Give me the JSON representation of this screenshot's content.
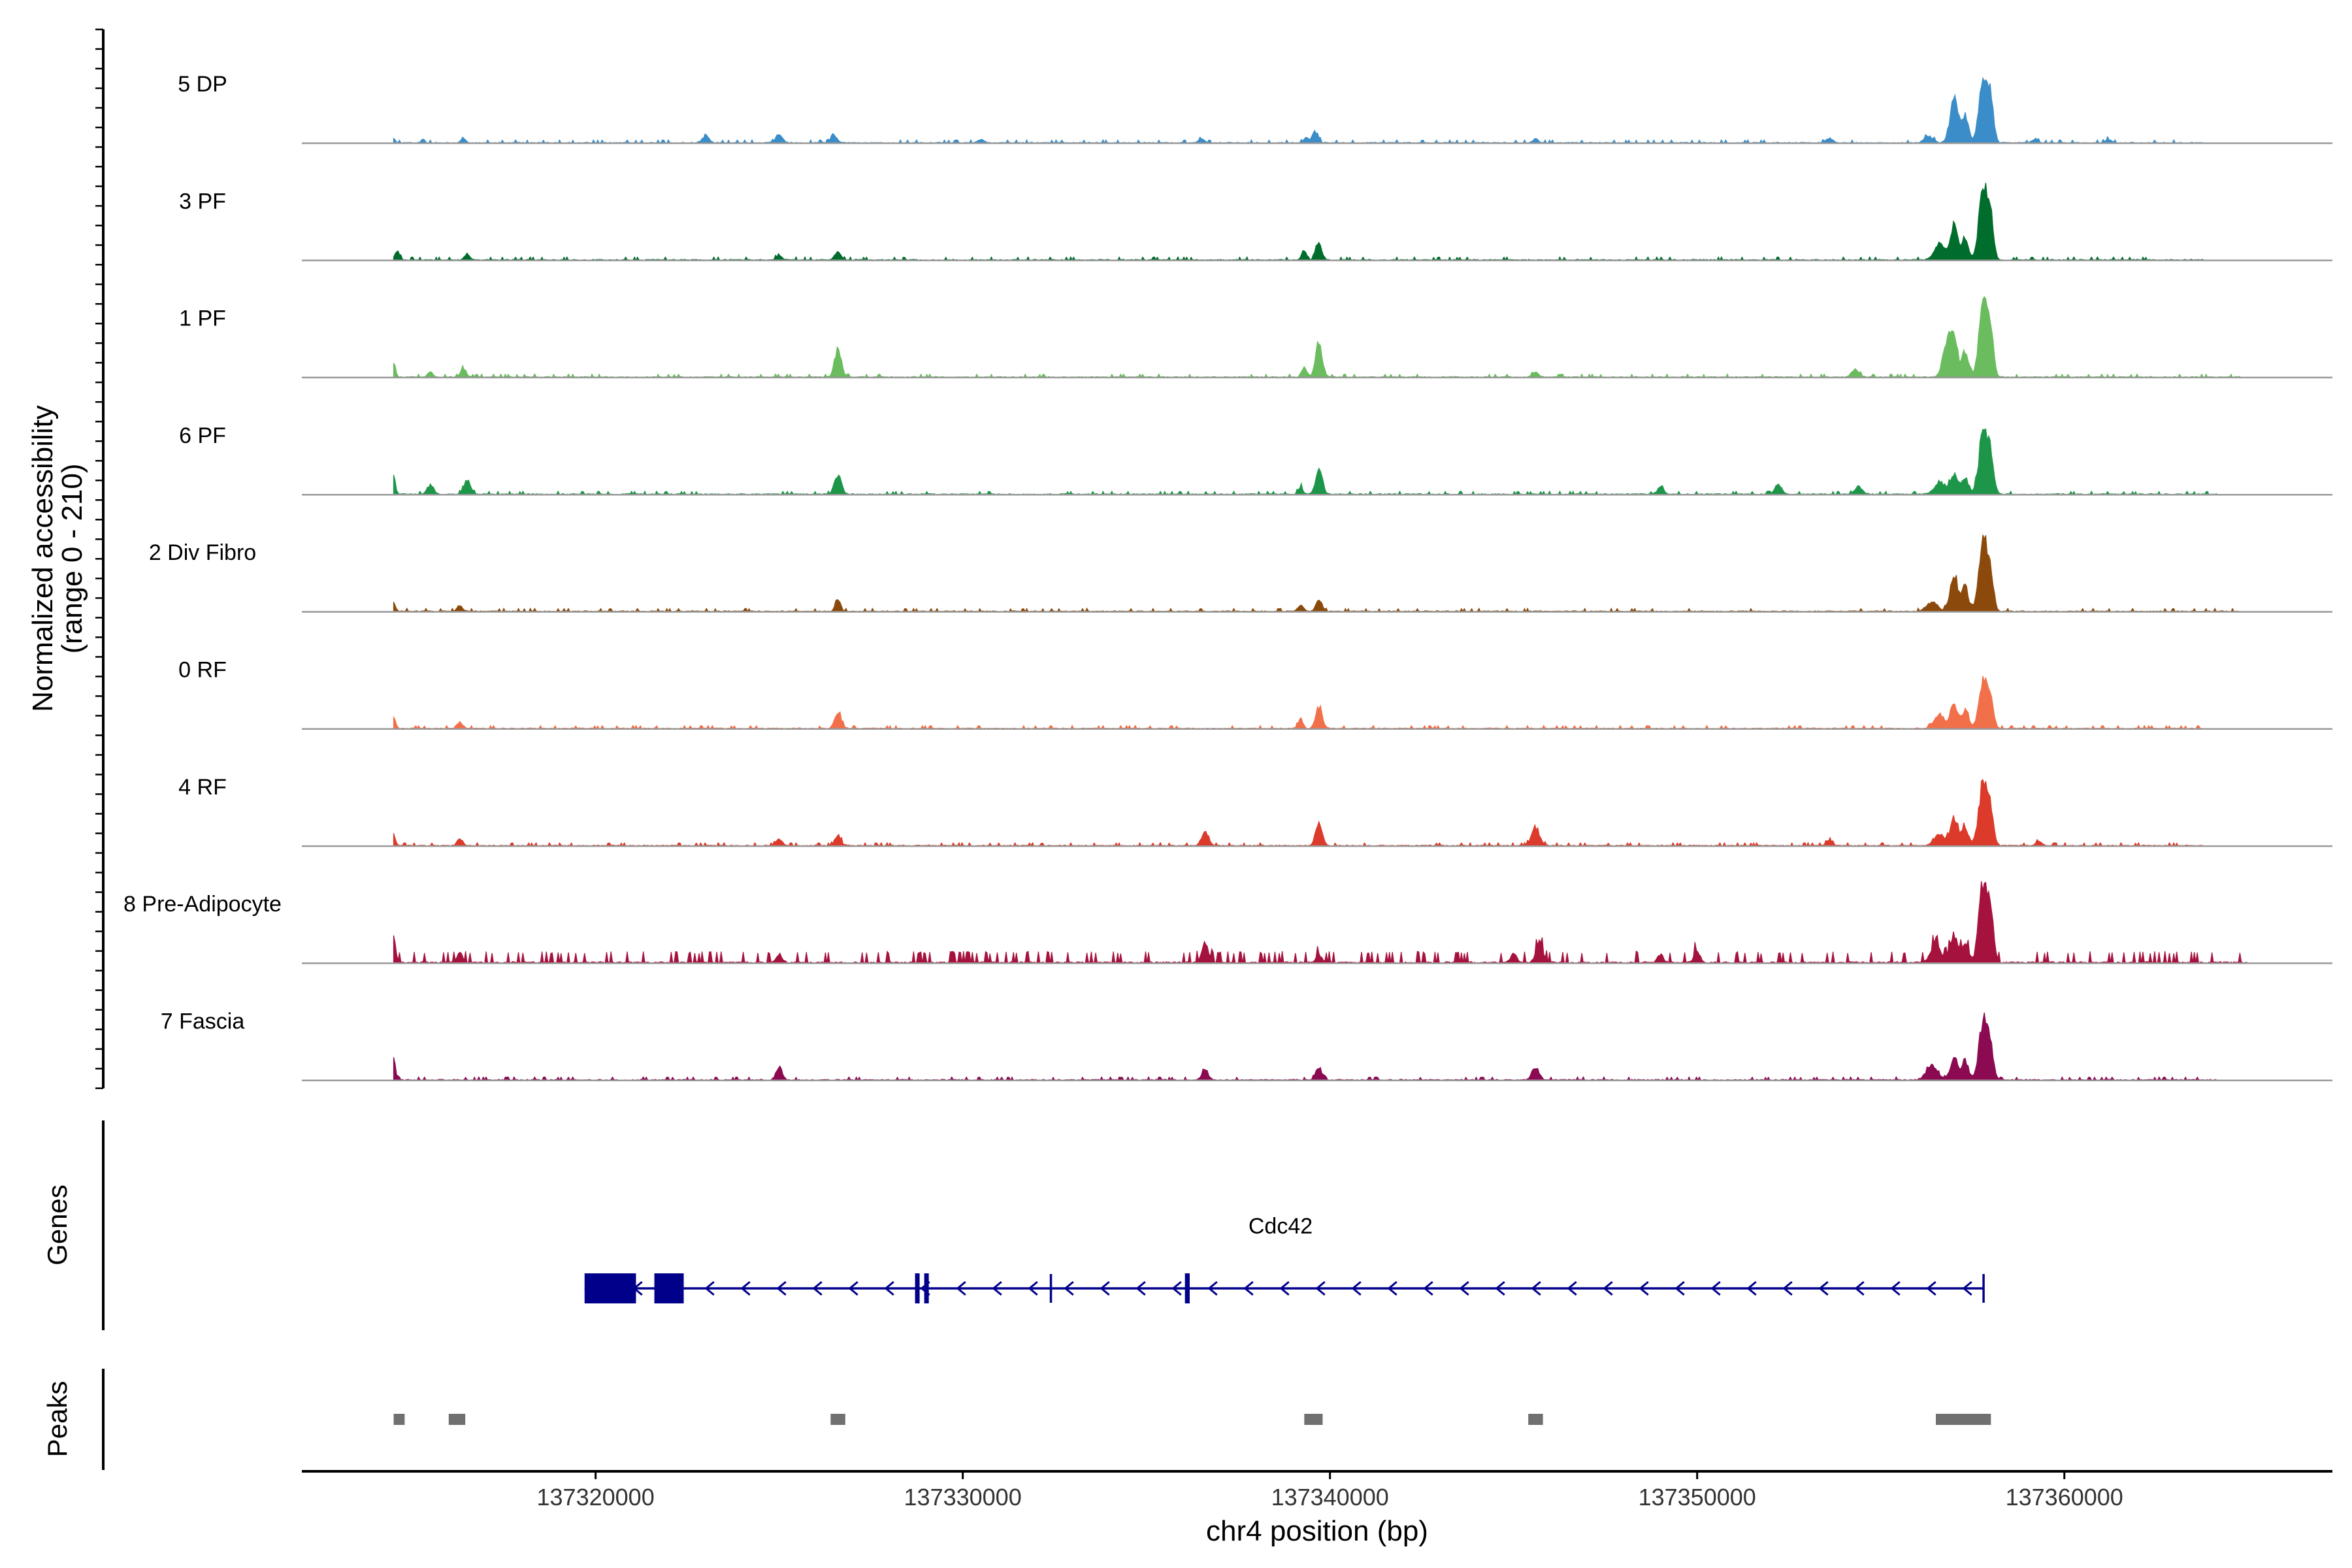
{
  "colors": {
    "baseline": "#999999",
    "axis": "#000000",
    "gene": "#00008B",
    "peak": "#707070"
  },
  "chart_data": {
    "type": "area",
    "title": "",
    "xlabel": "chr4 position (bp)",
    "ylabel_line1": "Normalized accessibility",
    "ylabel_line2": "(range 0 - 210)",
    "y_range": [
      0,
      210
    ],
    "xlim": [
      137312000,
      137367300
    ],
    "x_ticks": [
      137320000,
      137330000,
      137340000,
      137350000,
      137360000
    ],
    "x_tick_labels": [
      "137320000",
      "137330000",
      "137340000",
      "137350000",
      "137360000"
    ],
    "tracks": [
      {
        "name": "5 DP",
        "color": "#3A8DC8",
        "noise": {
          "start": 137314500,
          "end": 137363800,
          "level": 0.028,
          "seed": 1
        },
        "peaks": [
          [
            137314500,
            7,
            40
          ],
          [
            137315300,
            6,
            50
          ],
          [
            137316400,
            8,
            60
          ],
          [
            137323000,
            11,
            90
          ],
          [
            137325000,
            13,
            90
          ],
          [
            137326500,
            11,
            80
          ],
          [
            137330500,
            5,
            80
          ],
          [
            137336500,
            5,
            80
          ],
          [
            137339600,
            17,
            80
          ],
          [
            137339350,
            9,
            60
          ],
          [
            137345600,
            6,
            80
          ],
          [
            137353600,
            7,
            90
          ],
          [
            137356300,
            10,
            120
          ],
          [
            137357000,
            68,
            110
          ],
          [
            137357300,
            38,
            90
          ],
          [
            137357800,
            97,
            120
          ],
          [
            137358000,
            55,
            80
          ],
          [
            137359200,
            6,
            80
          ],
          [
            137361200,
            5,
            80
          ]
        ]
      },
      {
        "name": "3 PF",
        "color": "#006D2C",
        "noise": {
          "start": 137314500,
          "end": 137363800,
          "level": 0.04,
          "seed": 2
        },
        "peaks": [
          [
            137314600,
            13,
            60
          ],
          [
            137316500,
            9,
            70
          ],
          [
            137325000,
            6,
            80
          ],
          [
            137326600,
            12,
            80
          ],
          [
            137339300,
            15,
            70
          ],
          [
            137339700,
            25,
            80
          ],
          [
            137356600,
            24,
            140
          ],
          [
            137357000,
            50,
            110
          ],
          [
            137357300,
            35,
            80
          ],
          [
            137357800,
            113,
            120
          ],
          [
            137358000,
            50,
            80
          ]
        ]
      },
      {
        "name": "1 PF",
        "color": "#6ABC5E",
        "noise": {
          "start": 137314500,
          "end": 137364800,
          "level": 0.04,
          "seed": 3
        },
        "peaks": [
          [
            137314500,
            22,
            50
          ],
          [
            137315500,
            8,
            70
          ],
          [
            137316400,
            14,
            70
          ],
          [
            137326600,
            43,
            90
          ],
          [
            137339300,
            15,
            70
          ],
          [
            137339700,
            52,
            90
          ],
          [
            137345600,
            8,
            80
          ],
          [
            137354300,
            12,
            100
          ],
          [
            137356800,
            55,
            110
          ],
          [
            137357000,
            61,
            90
          ],
          [
            137357300,
            40,
            90
          ],
          [
            137357800,
            106,
            120
          ],
          [
            137358000,
            55,
            80
          ]
        ]
      },
      {
        "name": "6 PF",
        "color": "#1E9649",
        "noise": {
          "start": 137314500,
          "end": 137364200,
          "level": 0.04,
          "seed": 4
        },
        "peaks": [
          [
            137314500,
            26,
            50
          ],
          [
            137315500,
            14,
            90
          ],
          [
            137316500,
            22,
            90
          ],
          [
            137326600,
            30,
            90
          ],
          [
            137339200,
            12,
            60
          ],
          [
            137339700,
            38,
            90
          ],
          [
            137349000,
            12,
            80
          ],
          [
            137352200,
            16,
            90
          ],
          [
            137354400,
            12,
            100
          ],
          [
            137356600,
            18,
            140
          ],
          [
            137357000,
            31,
            110
          ],
          [
            137357300,
            25,
            90
          ],
          [
            137357800,
            98,
            120
          ],
          [
            137358000,
            42,
            90
          ]
        ]
      },
      {
        "name": "2 Div Fibro",
        "color": "#8B4A0B",
        "noise": {
          "start": 137314500,
          "end": 137364800,
          "level": 0.04,
          "seed": 5
        },
        "peaks": [
          [
            137314500,
            14,
            50
          ],
          [
            137316300,
            9,
            70
          ],
          [
            137326600,
            18,
            70
          ],
          [
            137339200,
            8,
            80
          ],
          [
            137339700,
            18,
            80
          ],
          [
            137356400,
            14,
            150
          ],
          [
            137357000,
            55,
            110
          ],
          [
            137357300,
            40,
            80
          ],
          [
            137357800,
            113,
            120
          ],
          [
            137358000,
            42,
            80
          ]
        ]
      },
      {
        "name": "0 RF",
        "color": "#F1704A",
        "noise": {
          "start": 137314500,
          "end": 137363800,
          "level": 0.04,
          "seed": 6
        },
        "peaks": [
          [
            137314500,
            19,
            50
          ],
          [
            137316300,
            10,
            80
          ],
          [
            137326600,
            24,
            90
          ],
          [
            137339200,
            14,
            70
          ],
          [
            137339700,
            32,
            90
          ],
          [
            137356600,
            20,
            140
          ],
          [
            137357000,
            36,
            100
          ],
          [
            137357300,
            28,
            90
          ],
          [
            137357800,
            72,
            120
          ],
          [
            137358000,
            34,
            80
          ]
        ]
      },
      {
        "name": "4 RF",
        "color": "#DC3A2A",
        "noise": {
          "start": 137314500,
          "end": 137363800,
          "level": 0.04,
          "seed": 7
        },
        "peaks": [
          [
            137314500,
            17,
            50
          ],
          [
            137316300,
            12,
            70
          ],
          [
            137325000,
            10,
            80
          ],
          [
            137326600,
            16,
            80
          ],
          [
            137336600,
            22,
            90
          ],
          [
            137339700,
            35,
            90
          ],
          [
            137345600,
            26,
            110
          ],
          [
            137353600,
            8,
            80
          ],
          [
            137356600,
            18,
            140
          ],
          [
            137357000,
            44,
            100
          ],
          [
            137357300,
            28,
            90
          ],
          [
            137357800,
            103,
            120
          ],
          [
            137358000,
            40,
            80
          ],
          [
            137359300,
            7,
            80
          ]
        ]
      },
      {
        "name": "8 Pre-Adipocyte",
        "color": "#A6123E",
        "noise": {
          "start": 137314500,
          "end": 137365000,
          "level": 0.06,
          "seed": 8,
          "spiky": true
        },
        "peaks": [
          [
            137314500,
            45,
            50
          ],
          [
            137316300,
            16,
            70
          ],
          [
            137325000,
            12,
            80
          ],
          [
            137336600,
            28,
            90
          ],
          [
            137339700,
            12,
            80
          ],
          [
            137345000,
            14,
            80
          ],
          [
            137345700,
            34,
            90
          ],
          [
            137349000,
            12,
            80
          ],
          [
            137350000,
            18,
            80
          ],
          [
            137356500,
            28,
            140
          ],
          [
            137357000,
            42,
            100
          ],
          [
            137357300,
            30,
            90
          ],
          [
            137357800,
            125,
            120
          ],
          [
            137358000,
            60,
            80
          ]
        ]
      },
      {
        "name": "7 Fascia",
        "color": "#8B0A52",
        "noise": {
          "start": 137314500,
          "end": 137364200,
          "level": 0.04,
          "seed": 9
        },
        "peaks": [
          [
            137314500,
            31,
            50
          ],
          [
            137325000,
            20,
            80
          ],
          [
            137336600,
            18,
            80
          ],
          [
            137339700,
            20,
            80
          ],
          [
            137345600,
            20,
            90
          ],
          [
            137356400,
            22,
            150
          ],
          [
            137357000,
            34,
            100
          ],
          [
            137357300,
            28,
            90
          ],
          [
            137357800,
            90,
            120
          ],
          [
            137358000,
            38,
            80
          ]
        ]
      }
    ],
    "genes_label": "Genes",
    "gene": {
      "name": "Cdc42",
      "strand": "-",
      "start": 137319700,
      "end": 137357800,
      "exons": [
        [
          137319700,
          137321100,
          "utr"
        ],
        [
          137321600,
          137322400,
          "utr"
        ],
        [
          137328700,
          137328800,
          "cds"
        ],
        [
          137328950,
          137329050,
          "cds"
        ],
        [
          137336050,
          137336180,
          "cds"
        ]
      ],
      "tick_marks": [
        137332400,
        137357800
      ]
    },
    "peaks_label": "Peaks",
    "peak_regions": [
      [
        137314500,
        137314800
      ],
      [
        137316000,
        137316450
      ],
      [
        137326400,
        137326800
      ],
      [
        137339300,
        137339800
      ],
      [
        137345400,
        137345800
      ],
      [
        137356500,
        137358000
      ]
    ]
  }
}
